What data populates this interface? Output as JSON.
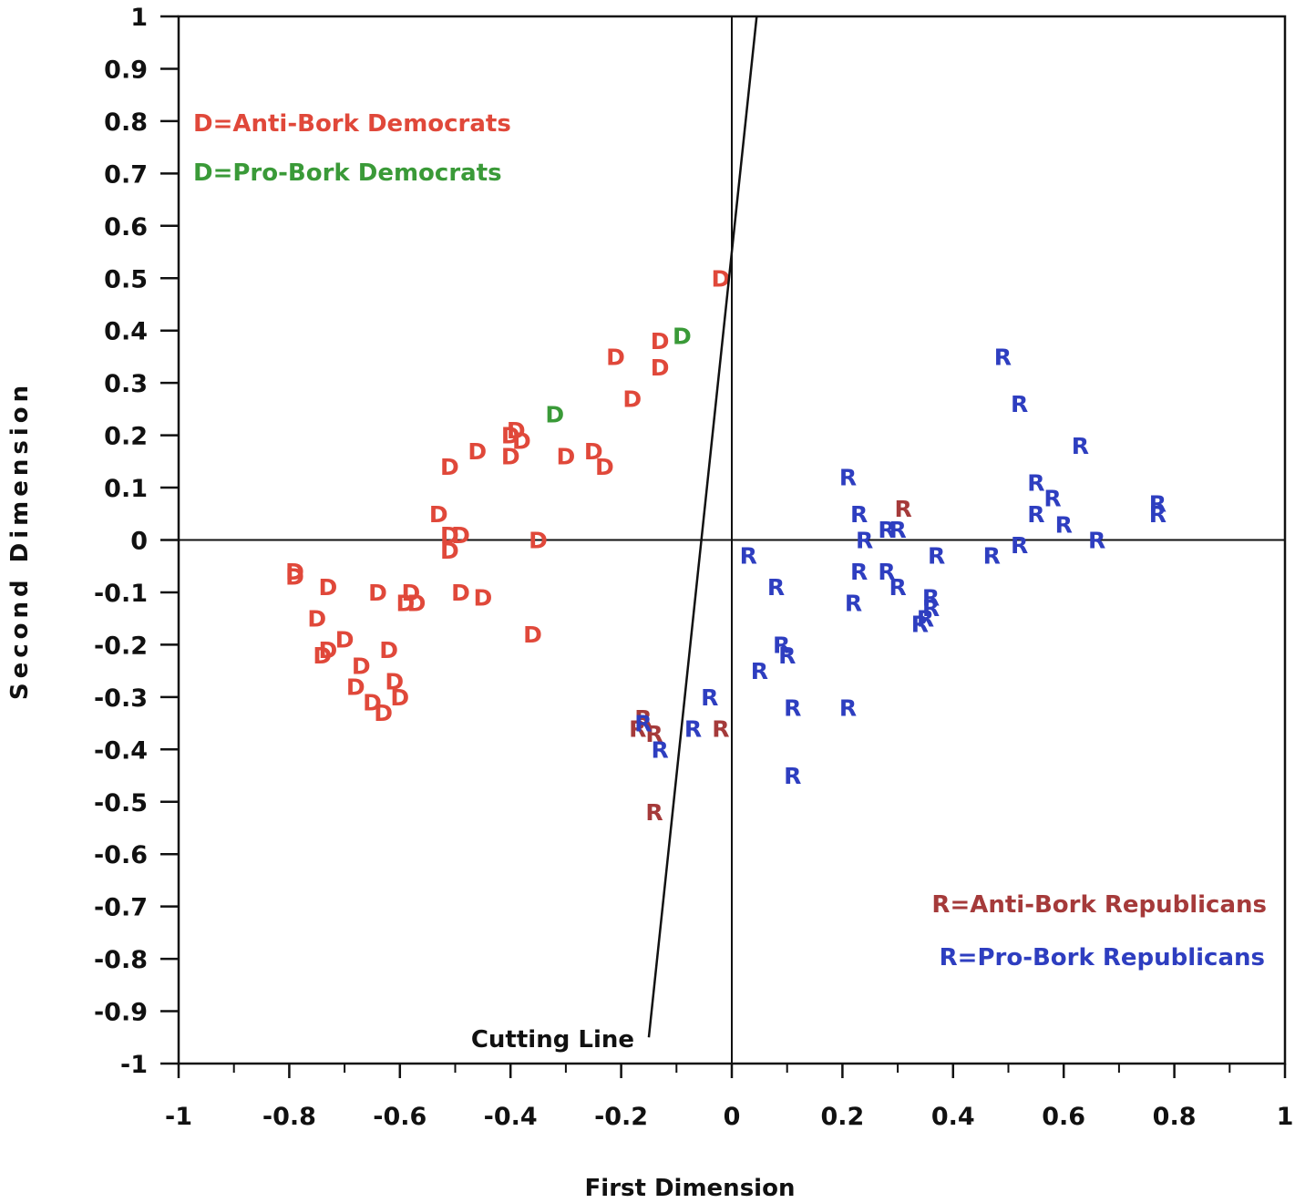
{
  "chart_data": {
    "type": "scatter",
    "xlabel": "First Dimension",
    "ylabel": "Second Dimension",
    "xlim": [
      -1,
      1
    ],
    "ylim": [
      -1,
      1
    ],
    "x_ticks": [
      "-1",
      "-0.8",
      "-0.6",
      "-0.4",
      "-0.2",
      "0",
      "0.2",
      "0.4",
      "0.6",
      "0.8",
      "1"
    ],
    "y_ticks": [
      "1",
      "0.9",
      "0.8",
      "0.7",
      "0.6",
      "0.5",
      "0.4",
      "0.3",
      "0.2",
      "0.1",
      "0",
      "-0.1",
      "-0.2",
      "-0.3",
      "-0.4",
      "-0.5",
      "-0.6",
      "-0.7",
      "-0.8",
      "-0.9",
      "-1"
    ],
    "grid": false,
    "colors": {
      "anti_dem": "#e0483a",
      "pro_dem": "#3a9a38",
      "anti_rep": "#a53a3a",
      "pro_rep": "#2e3ec0"
    },
    "legend": [
      {
        "label": "D=Anti-Bork Democrats",
        "color_key": "anti_dem",
        "position": "top-left"
      },
      {
        "label": "D=Pro-Bork Democrats",
        "color_key": "pro_dem",
        "position": "top-left"
      },
      {
        "label": "R=Anti-Bork Republicans",
        "color_key": "anti_rep",
        "position": "bottom-right"
      },
      {
        "label": "R=Pro-Bork Republicans",
        "color_key": "pro_rep",
        "position": "bottom-right"
      }
    ],
    "cutting_line": {
      "label": "Cutting Line",
      "from": [
        -0.15,
        -0.95
      ],
      "to": [
        0.045,
        1.0
      ]
    },
    "series": [
      {
        "group": "anti_dem",
        "marker": "D",
        "points": [
          [
            -0.02,
            0.5
          ],
          [
            -0.21,
            0.35
          ],
          [
            -0.13,
            0.38
          ],
          [
            -0.13,
            0.33
          ],
          [
            -0.18,
            0.27
          ],
          [
            -0.4,
            0.2
          ],
          [
            -0.39,
            0.21
          ],
          [
            -0.38,
            0.19
          ],
          [
            -0.4,
            0.16
          ],
          [
            -0.46,
            0.17
          ],
          [
            -0.51,
            0.14
          ],
          [
            -0.3,
            0.16
          ],
          [
            -0.25,
            0.17
          ],
          [
            -0.23,
            0.14
          ],
          [
            -0.53,
            0.05
          ],
          [
            -0.51,
            0.01
          ],
          [
            -0.49,
            0.01
          ],
          [
            -0.51,
            -0.02
          ],
          [
            -0.35,
            0.0
          ],
          [
            -0.79,
            -0.06
          ],
          [
            -0.79,
            -0.07
          ],
          [
            -0.73,
            -0.09
          ],
          [
            -0.64,
            -0.1
          ],
          [
            -0.59,
            -0.12
          ],
          [
            -0.58,
            -0.1
          ],
          [
            -0.57,
            -0.12
          ],
          [
            -0.49,
            -0.1
          ],
          [
            -0.45,
            -0.11
          ],
          [
            -0.75,
            -0.15
          ],
          [
            -0.7,
            -0.19
          ],
          [
            -0.73,
            -0.21
          ],
          [
            -0.74,
            -0.22
          ],
          [
            -0.36,
            -0.18
          ],
          [
            -0.67,
            -0.24
          ],
          [
            -0.62,
            -0.21
          ],
          [
            -0.68,
            -0.28
          ],
          [
            -0.61,
            -0.27
          ],
          [
            -0.65,
            -0.31
          ],
          [
            -0.6,
            -0.3
          ],
          [
            -0.63,
            -0.33
          ]
        ]
      },
      {
        "group": "pro_dem",
        "marker": "D",
        "points": [
          [
            -0.09,
            0.39
          ],
          [
            -0.32,
            0.24
          ]
        ]
      },
      {
        "group": "anti_rep",
        "marker": "R",
        "points": [
          [
            0.31,
            0.06
          ],
          [
            -0.16,
            -0.34
          ],
          [
            -0.17,
            -0.36
          ],
          [
            -0.14,
            -0.37
          ],
          [
            -0.02,
            -0.36
          ],
          [
            -0.14,
            -0.52
          ]
        ]
      },
      {
        "group": "pro_rep",
        "marker": "R",
        "points": [
          [
            0.49,
            0.35
          ],
          [
            0.52,
            0.26
          ],
          [
            0.63,
            0.18
          ],
          [
            0.21,
            0.12
          ],
          [
            0.55,
            0.11
          ],
          [
            0.58,
            0.08
          ],
          [
            0.55,
            0.05
          ],
          [
            0.6,
            0.03
          ],
          [
            0.77,
            0.07
          ],
          [
            0.77,
            0.05
          ],
          [
            0.23,
            0.05
          ],
          [
            0.28,
            0.02
          ],
          [
            0.3,
            0.02
          ],
          [
            0.24,
            0.0
          ],
          [
            0.52,
            -0.01
          ],
          [
            0.66,
            0.0
          ],
          [
            0.47,
            -0.03
          ],
          [
            0.37,
            -0.03
          ],
          [
            0.03,
            -0.03
          ],
          [
            0.08,
            -0.09
          ],
          [
            0.23,
            -0.06
          ],
          [
            0.28,
            -0.06
          ],
          [
            0.3,
            -0.09
          ],
          [
            0.22,
            -0.12
          ],
          [
            0.36,
            -0.11
          ],
          [
            0.36,
            -0.13
          ],
          [
            0.35,
            -0.15
          ],
          [
            0.34,
            -0.16
          ],
          [
            0.09,
            -0.2
          ],
          [
            0.1,
            -0.22
          ],
          [
            0.05,
            -0.25
          ],
          [
            -0.04,
            -0.3
          ],
          [
            0.11,
            -0.32
          ],
          [
            0.21,
            -0.32
          ],
          [
            -0.07,
            -0.36
          ],
          [
            -0.13,
            -0.4
          ],
          [
            0.11,
            -0.45
          ],
          [
            -0.16,
            -0.35
          ]
        ]
      }
    ]
  }
}
